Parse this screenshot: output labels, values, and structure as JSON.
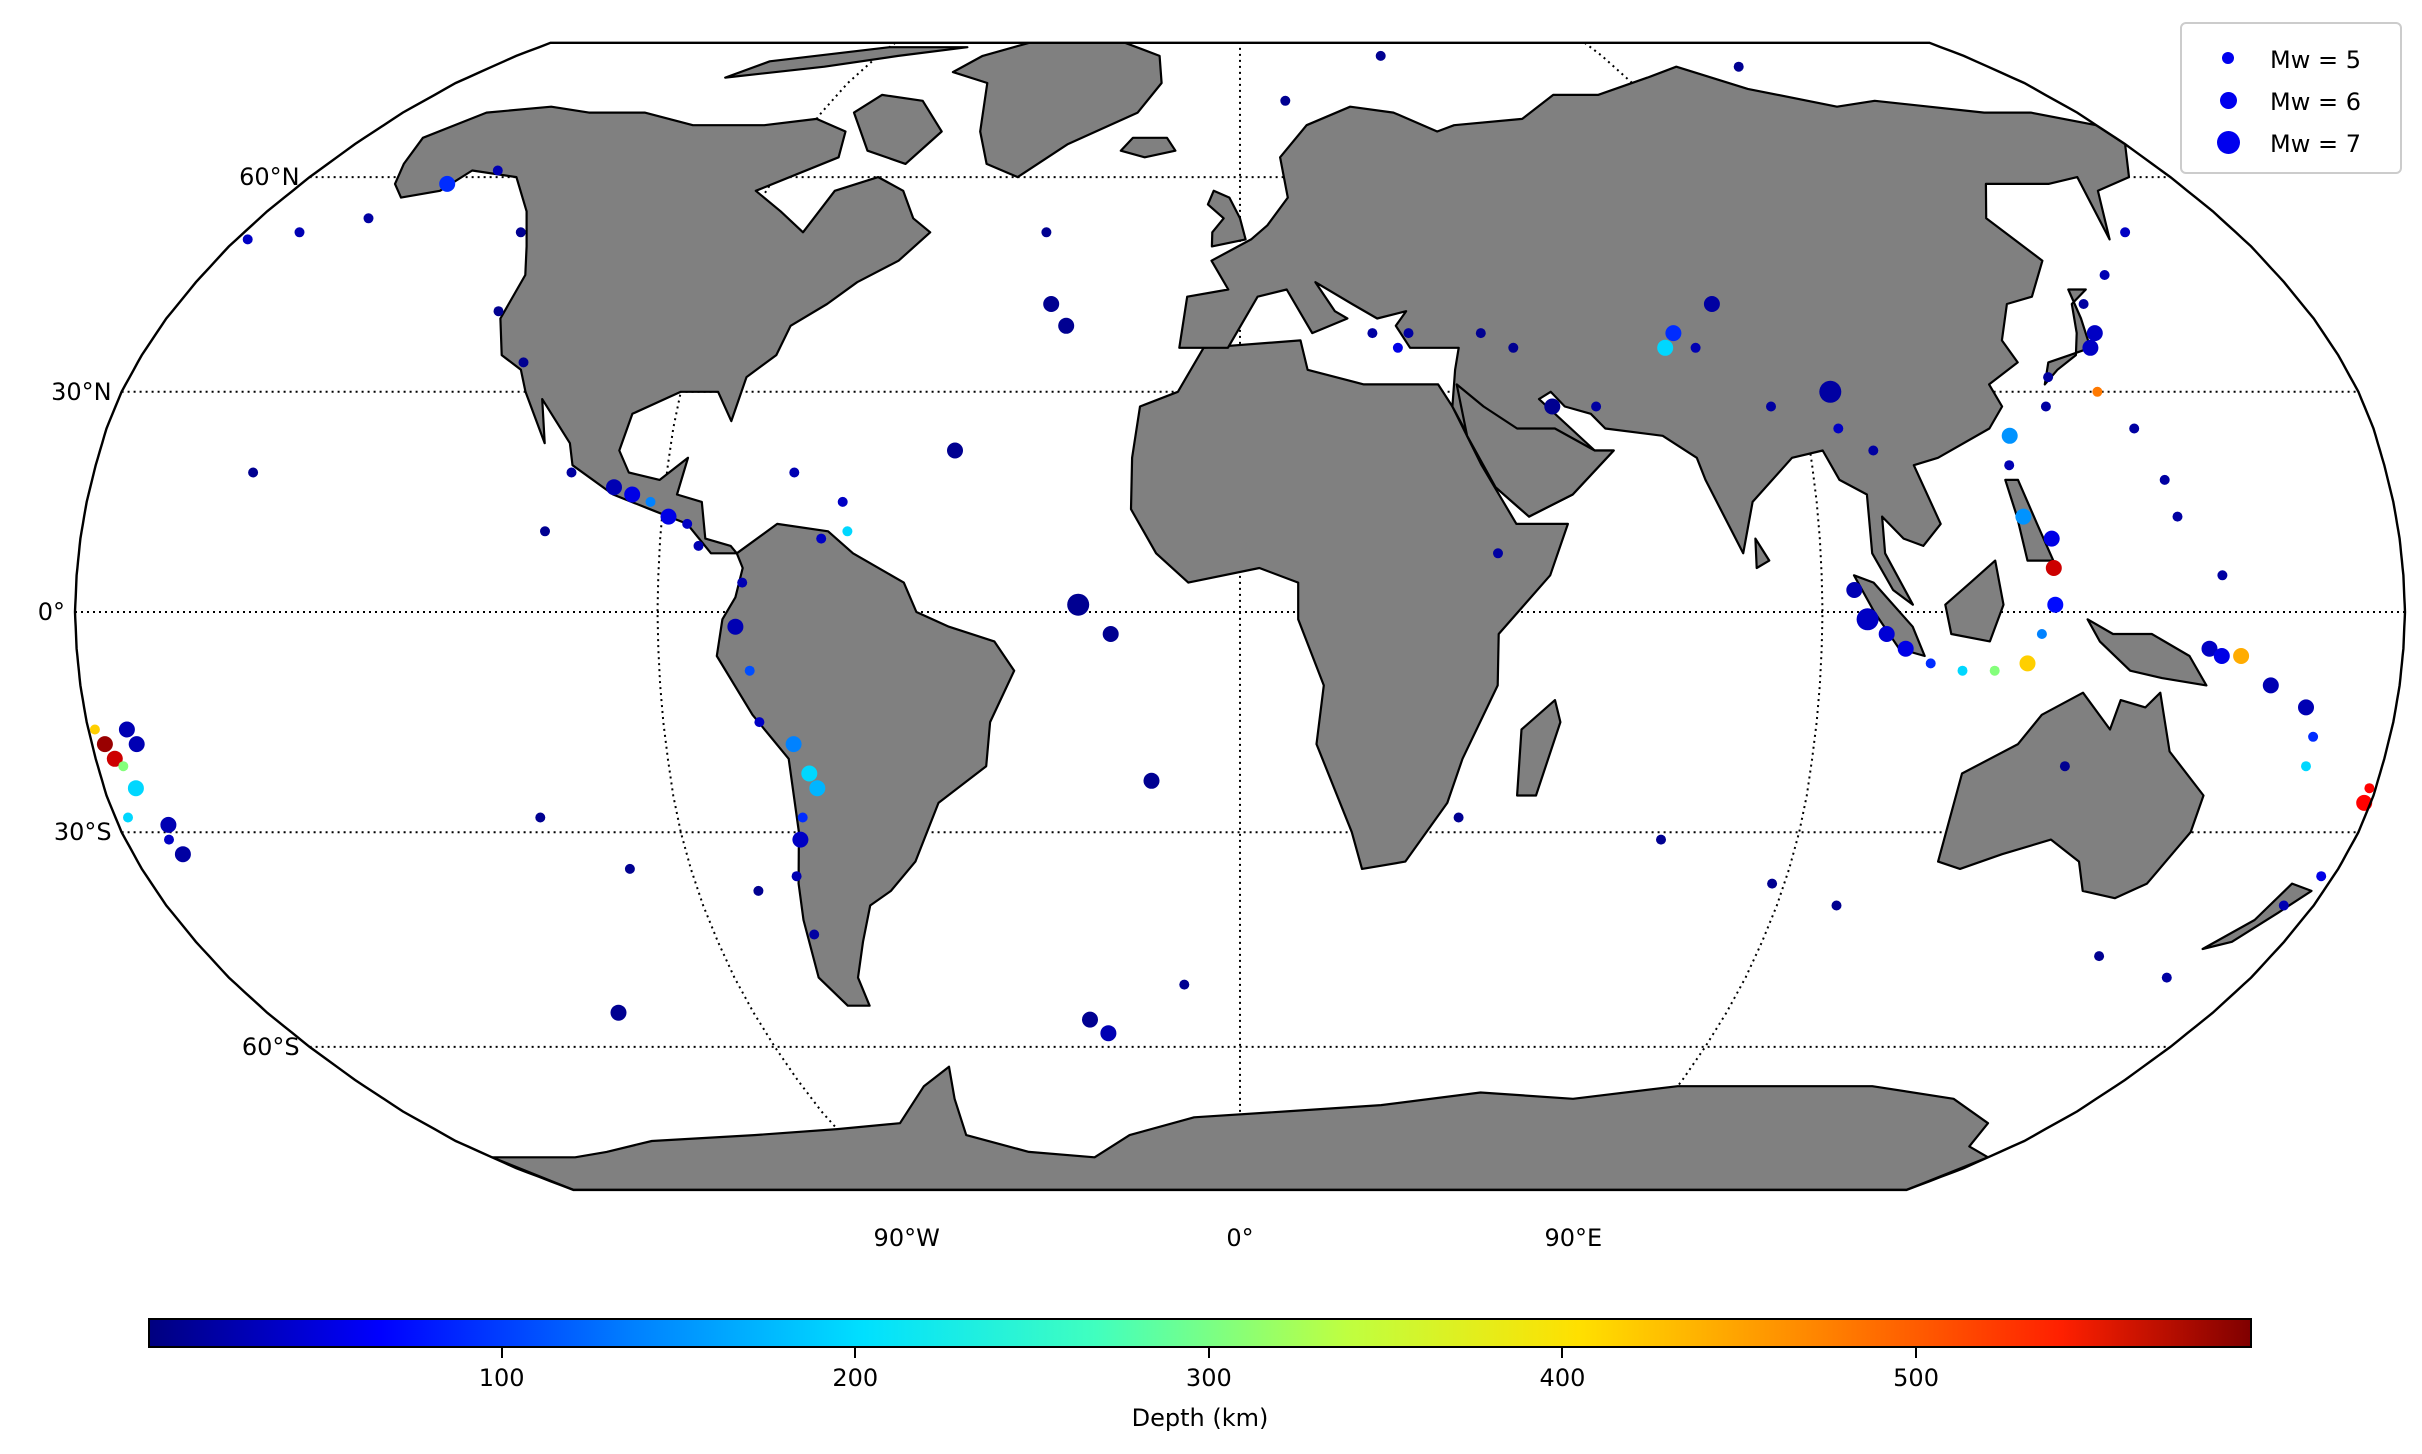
{
  "map": {
    "projection": "Robinson",
    "ocean_color": "#ffffff",
    "land_color": "#808080",
    "coastline_color": "#000000",
    "lat_labels": [
      "60°N",
      "30°N",
      "0°",
      "30°S",
      "60°S"
    ],
    "lon_labels": [
      "90°W",
      "0°",
      "90°E"
    ],
    "graticule": "dotted"
  },
  "legend": {
    "entries": [
      {
        "label": "Mw = 5",
        "mw": 5
      },
      {
        "label": "Mw = 6",
        "mw": 6
      },
      {
        "label": "Mw = 7",
        "mw": 7
      }
    ],
    "placement": "top-right"
  },
  "colorbar": {
    "label": "Depth (km)",
    "ticks": [
      "100",
      "200",
      "300",
      "400",
      "500"
    ],
    "range": [
      0,
      595
    ],
    "colormap": "jet"
  },
  "events": [
    {
      "lon": -152,
      "lat": 59,
      "depth": 100,
      "mw": 6
    },
    {
      "lon": -145,
      "lat": 61,
      "depth": 30,
      "mw": 5
    },
    {
      "lon": -170,
      "lat": 52,
      "depth": 30,
      "mw": 5
    },
    {
      "lon": -178,
      "lat": 51,
      "depth": 40,
      "mw": 5
    },
    {
      "lon": -160,
      "lat": 54,
      "depth": 20,
      "mw": 5
    },
    {
      "lon": -130,
      "lat": 52,
      "depth": 10,
      "mw": 5
    },
    {
      "lon": -125,
      "lat": 41,
      "depth": 10,
      "mw": 5
    },
    {
      "lon": -117,
      "lat": 34,
      "depth": 10,
      "mw": 5
    },
    {
      "lon": -155,
      "lat": 19,
      "depth": 10,
      "mw": 5
    },
    {
      "lon": -105,
      "lat": 19,
      "depth": 20,
      "mw": 5
    },
    {
      "lon": -98,
      "lat": 17,
      "depth": 30,
      "mw": 6
    },
    {
      "lon": -95,
      "lat": 16,
      "depth": 60,
      "mw": 6
    },
    {
      "lon": -92,
      "lat": 15,
      "depth": 150,
      "mw": 5
    },
    {
      "lon": -89,
      "lat": 13,
      "depth": 60,
      "mw": 6
    },
    {
      "lon": -86,
      "lat": 12,
      "depth": 40,
      "mw": 5
    },
    {
      "lon": -84,
      "lat": 9,
      "depth": 30,
      "mw": 5
    },
    {
      "lon": -108,
      "lat": 11,
      "depth": 10,
      "mw": 5
    },
    {
      "lon": -77,
      "lat": 4,
      "depth": 30,
      "mw": 5
    },
    {
      "lon": -70,
      "lat": 19,
      "depth": 30,
      "mw": 5
    },
    {
      "lon": -62,
      "lat": 15,
      "depth": 40,
      "mw": 5
    },
    {
      "lon": -61,
      "lat": 11,
      "depth": 200,
      "mw": 5
    },
    {
      "lon": -65,
      "lat": 10,
      "depth": 40,
      "mw": 5
    },
    {
      "lon": -78,
      "lat": -2,
      "depth": 30,
      "mw": 6
    },
    {
      "lon": -76,
      "lat": -8,
      "depth": 120,
      "mw": 5
    },
    {
      "lon": -75,
      "lat": -15,
      "depth": 40,
      "mw": 5
    },
    {
      "lon": -70,
      "lat": -18,
      "depth": 150,
      "mw": 6
    },
    {
      "lon": -68,
      "lat": -22,
      "depth": 200,
      "mw": 6
    },
    {
      "lon": -67,
      "lat": -24,
      "depth": 180,
      "mw": 6
    },
    {
      "lon": -70,
      "lat": -28,
      "depth": 100,
      "mw": 5
    },
    {
      "lon": -71,
      "lat": -31,
      "depth": 40,
      "mw": 6
    },
    {
      "lon": -73,
      "lat": -36,
      "depth": 30,
      "mw": 5
    },
    {
      "lon": -73,
      "lat": -44,
      "depth": 20,
      "mw": 5
    },
    {
      "lon": -112,
      "lat": -28,
      "depth": 10,
      "mw": 5
    },
    {
      "lon": -100,
      "lat": -35,
      "depth": 10,
      "mw": 5
    },
    {
      "lon": -115,
      "lat": -55,
      "depth": 10,
      "mw": 6
    },
    {
      "lon": -80,
      "lat": -38,
      "depth": 10,
      "mw": 5
    },
    {
      "lon": -32,
      "lat": 42,
      "depth": 10,
      "mw": 6
    },
    {
      "lon": -29,
      "lat": 39,
      "depth": 10,
      "mw": 6
    },
    {
      "lon": -35,
      "lat": 52,
      "depth": 10,
      "mw": 5
    },
    {
      "lon": -25,
      "lat": 1,
      "depth": 10,
      "mw": 7
    },
    {
      "lon": -20,
      "lat": -3,
      "depth": 10,
      "mw": 6
    },
    {
      "lon": -14,
      "lat": -23,
      "depth": 10,
      "mw": 6
    },
    {
      "lon": -28,
      "lat": -56,
      "depth": 10,
      "mw": 6
    },
    {
      "lon": -25,
      "lat": -58,
      "depth": 30,
      "mw": 6
    },
    {
      "lon": -10,
      "lat": -51,
      "depth": 10,
      "mw": 5
    },
    {
      "lon": -45,
      "lat": 22,
      "depth": 10,
      "mw": 6
    },
    {
      "lon": 22,
      "lat": 38,
      "depth": 20,
      "mw": 5
    },
    {
      "lon": 26,
      "lat": 36,
      "depth": 60,
      "mw": 5
    },
    {
      "lon": 28,
      "lat": 38,
      "depth": 20,
      "mw": 5
    },
    {
      "lon": 40,
      "lat": 38,
      "depth": 10,
      "mw": 5
    },
    {
      "lon": 45,
      "lat": 36,
      "depth": 10,
      "mw": 5
    },
    {
      "lon": 50,
      "lat": 28,
      "depth": 10,
      "mw": 6
    },
    {
      "lon": 57,
      "lat": 28,
      "depth": 20,
      "mw": 5
    },
    {
      "lon": 70,
      "lat": 36,
      "depth": 200,
      "mw": 6
    },
    {
      "lon": 72,
      "lat": 38,
      "depth": 100,
      "mw": 6
    },
    {
      "lon": 75,
      "lat": 36,
      "depth": 30,
      "mw": 5
    },
    {
      "lon": 80,
      "lat": 42,
      "depth": 20,
      "mw": 6
    },
    {
      "lon": 95,
      "lat": 30,
      "depth": 20,
      "mw": 7
    },
    {
      "lon": 85,
      "lat": 28,
      "depth": 20,
      "mw": 5
    },
    {
      "lon": 95,
      "lat": 25,
      "depth": 40,
      "mw": 5
    },
    {
      "lon": 100,
      "lat": 22,
      "depth": 20,
      "mw": 5
    },
    {
      "lon": 40,
      "lat": 8,
      "depth": 20,
      "mw": 5
    },
    {
      "lon": 35,
      "lat": -28,
      "depth": 10,
      "mw": 5
    },
    {
      "lon": 68,
      "lat": -31,
      "depth": 10,
      "mw": 5
    },
    {
      "lon": 88,
      "lat": -37,
      "depth": 10,
      "mw": 5
    },
    {
      "lon": 100,
      "lat": -40,
      "depth": 10,
      "mw": 5
    },
    {
      "lon": 95,
      "lat": 3,
      "depth": 30,
      "mw": 6
    },
    {
      "lon": 97,
      "lat": -1,
      "depth": 40,
      "mw": 7
    },
    {
      "lon": 100,
      "lat": -3,
      "depth": 50,
      "mw": 6
    },
    {
      "lon": 103,
      "lat": -5,
      "depth": 60,
      "mw": 6
    },
    {
      "lon": 107,
      "lat": -7,
      "depth": 100,
      "mw": 5
    },
    {
      "lon": 112,
      "lat": -8,
      "depth": 200,
      "mw": 5
    },
    {
      "lon": 117,
      "lat": -8,
      "depth": 300,
      "mw": 5
    },
    {
      "lon": 122,
      "lat": -7,
      "depth": 400,
      "mw": 6
    },
    {
      "lon": 124,
      "lat": -3,
      "depth": 150,
      "mw": 5
    },
    {
      "lon": 126,
      "lat": 1,
      "depth": 80,
      "mw": 6
    },
    {
      "lon": 126,
      "lat": 6,
      "depth": 550,
      "mw": 6
    },
    {
      "lon": 126,
      "lat": 10,
      "depth": 60,
      "mw": 6
    },
    {
      "lon": 122,
      "lat": 13,
      "depth": 160,
      "mw": 6
    },
    {
      "lon": 121,
      "lat": 20,
      "depth": 30,
      "mw": 5
    },
    {
      "lon": 122,
      "lat": 24,
      "depth": 160,
      "mw": 6
    },
    {
      "lon": 129,
      "lat": 28,
      "depth": 20,
      "mw": 5
    },
    {
      "lon": 131,
      "lat": 32,
      "depth": 20,
      "mw": 5
    },
    {
      "lon": 140,
      "lat": 36,
      "depth": 40,
      "mw": 6
    },
    {
      "lon": 142,
      "lat": 38,
      "depth": 40,
      "mw": 6
    },
    {
      "lon": 143,
      "lat": 42,
      "depth": 20,
      "mw": 5
    },
    {
      "lon": 150,
      "lat": 46,
      "depth": 30,
      "mw": 5
    },
    {
      "lon": 160,
      "lat": 52,
      "depth": 40,
      "mw": 5
    },
    {
      "lon": 138,
      "lat": 30,
      "depth": 450,
      "mw": 5
    },
    {
      "lon": 142,
      "lat": 25,
      "depth": 20,
      "mw": 5
    },
    {
      "lon": 145,
      "lat": 18,
      "depth": 20,
      "mw": 5
    },
    {
      "lon": 146,
      "lat": 13,
      "depth": 20,
      "mw": 5
    },
    {
      "lon": 152,
      "lat": 5,
      "depth": 20,
      "mw": 5
    },
    {
      "lon": 150,
      "lat": -5,
      "depth": 40,
      "mw": 6
    },
    {
      "lon": 152,
      "lat": -6,
      "depth": 60,
      "mw": 6
    },
    {
      "lon": 155,
      "lat": -6,
      "depth": 420,
      "mw": 6
    },
    {
      "lon": 160,
      "lat": -10,
      "depth": 30,
      "mw": 6
    },
    {
      "lon": 166,
      "lat": -13,
      "depth": 30,
      "mw": 6
    },
    {
      "lon": 168,
      "lat": -17,
      "depth": 100,
      "mw": 5
    },
    {
      "lon": 168,
      "lat": -21,
      "depth": 200,
      "mw": 5
    },
    {
      "lon": 175,
      "lat": -40,
      "depth": 30,
      "mw": 5
    },
    {
      "lon": 178,
      "lat": -36,
      "depth": 60,
      "mw": 5
    },
    {
      "lon": 165,
      "lat": -50,
      "depth": 20,
      "mw": 5
    },
    {
      "lon": 150,
      "lat": -47,
      "depth": 10,
      "mw": 5
    },
    {
      "lon": 130,
      "lat": -21,
      "depth": 10,
      "mw": 5
    },
    {
      "lon": 179,
      "lat": -26,
      "depth": 520,
      "mw": 6
    },
    {
      "lon": 179,
      "lat": -24,
      "depth": 520,
      "mw": 5
    },
    {
      "lon": -178,
      "lat": -18,
      "depth": 580,
      "mw": 6
    },
    {
      "lon": -177,
      "lat": -20,
      "depth": 550,
      "mw": 6
    },
    {
      "lon": -179,
      "lat": -16,
      "depth": 400,
      "mw": 5
    },
    {
      "lon": -176,
      "lat": -21,
      "depth": 300,
      "mw": 5
    },
    {
      "lon": -175,
      "lat": -24,
      "depth": 200,
      "mw": 6
    },
    {
      "lon": -174,
      "lat": -16,
      "depth": 30,
      "mw": 6
    },
    {
      "lon": -173,
      "lat": -18,
      "depth": 30,
      "mw": 6
    },
    {
      "lon": -172,
      "lat": -29,
      "depth": 30,
      "mw": 6
    },
    {
      "lon": -173,
      "lat": -31,
      "depth": 40,
      "mw": 5
    },
    {
      "lon": -172,
      "lat": -33,
      "depth": 20,
      "mw": 6
    },
    {
      "lon": -178,
      "lat": -28,
      "depth": 200,
      "mw": 5
    },
    {
      "lon": 10,
      "lat": 72,
      "depth": 10,
      "mw": 5
    },
    {
      "lon": 35,
      "lat": 80,
      "depth": 10,
      "mw": 5
    },
    {
      "lon": 120,
      "lat": 78,
      "depth": 10,
      "mw": 5
    }
  ]
}
